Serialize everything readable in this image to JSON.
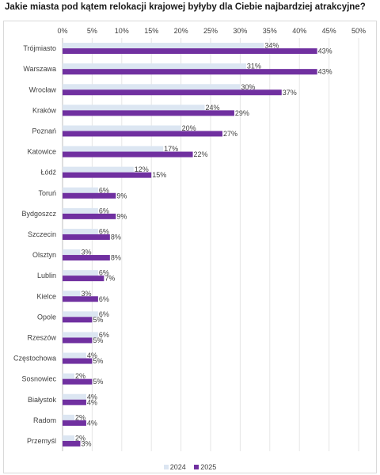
{
  "chart_data": {
    "type": "bar",
    "orientation": "horizontal",
    "title": "Jakie miasta pod kątem relokacji krajowej byłyby dla Ciebie najbardziej atrakcyjne?",
    "xlabel": "",
    "ylabel": "",
    "xlim": [
      0,
      50
    ],
    "x_ticks": [
      "0%",
      "5%",
      "10%",
      "15%",
      "20%",
      "25%",
      "30%",
      "35%",
      "40%",
      "45%",
      "50%"
    ],
    "grid": true,
    "legend_position": "bottom",
    "categories": [
      "Trójmiasto",
      "Warszawa",
      "Wrocław",
      "Kraków",
      "Poznań",
      "Katowice",
      "Łódź",
      "Toruń",
      "Bydgoszcz",
      "Szczecin",
      "Olsztyn",
      "Lublin",
      "Kielce",
      "Opole",
      "Rzeszów",
      "Częstochowa",
      "Sosnowiec",
      "Białystok",
      "Radom",
      "Przemyśl"
    ],
    "series": [
      {
        "name": "2024",
        "color": "#dce6f2",
        "values": [
          34,
          31,
          30,
          24,
          20,
          17,
          12,
          6,
          6,
          6,
          3,
          6,
          3,
          6,
          6,
          4,
          2,
          4,
          2,
          2
        ],
        "labels": [
          "34%",
          "31%",
          "30%",
          "24%",
          "20%",
          "17%",
          "12%",
          "6%",
          "6%",
          "6%",
          "3%",
          "6%",
          "3%",
          "6%",
          "6%",
          "4%",
          "2%",
          "4%",
          "2%",
          "2%"
        ]
      },
      {
        "name": "2025",
        "color": "#7030a0",
        "values": [
          43,
          43,
          37,
          29,
          27,
          22,
          15,
          9,
          9,
          8,
          8,
          7,
          6,
          5,
          5,
          5,
          5,
          4,
          4,
          3
        ],
        "labels": [
          "43%",
          "43%",
          "37%",
          "29%",
          "27%",
          "22%",
          "15%",
          "9%",
          "9%",
          "8%",
          "8%",
          "7%",
          "6%",
          "5%",
          "5%",
          "5%",
          "5%",
          "4%",
          "4%",
          "3%"
        ]
      }
    ]
  }
}
